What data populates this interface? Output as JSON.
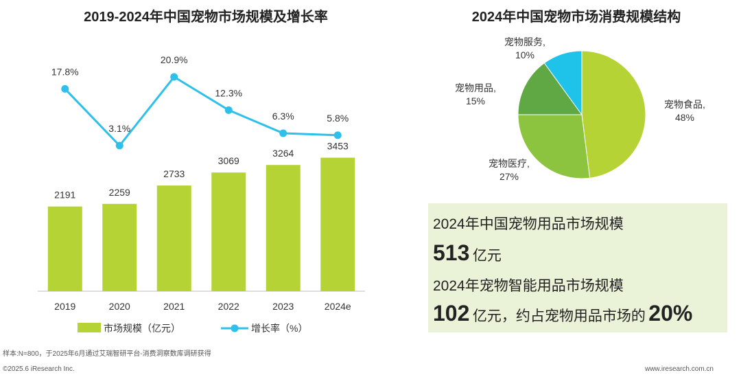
{
  "left_chart": {
    "title": "2019-2024年中国宠物市场规模及增长率",
    "chart_data": {
      "type": "bar+line",
      "categories": [
        "2019",
        "2020",
        "2021",
        "2022",
        "2023",
        "2024e"
      ],
      "series": [
        {
          "name": "市场规模（亿元）",
          "type": "bar",
          "values": [
            2191,
            2259,
            2733,
            3069,
            3264,
            3453
          ],
          "color": "#b5d334"
        },
        {
          "name": "增长率（%）",
          "type": "line",
          "values": [
            17.8,
            3.1,
            20.9,
            12.3,
            6.3,
            5.8
          ],
          "color": "#2cc0ea"
        }
      ],
      "bar_labels": [
        "2191",
        "2259",
        "2733",
        "3069",
        "3264",
        "3453"
      ],
      "line_labels": [
        "17.8%",
        "3.1%",
        "20.9%",
        "12.3%",
        "6.3%",
        "5.8%"
      ],
      "legend": [
        "市场规模（亿元）",
        "增长率（%）"
      ],
      "legend_position": "bottom"
    }
  },
  "right_chart": {
    "title": "2024年中国宠物市场消费规模结构",
    "chart_data": {
      "type": "pie",
      "slices": [
        {
          "label": "宠物食品,",
          "pct_label": "48%",
          "value": 48,
          "color": "#b5d334"
        },
        {
          "label": "宠物医疗,",
          "pct_label": "27%",
          "value": 27,
          "color": "#8cc43f"
        },
        {
          "label": "宠物用品,",
          "pct_label": "15%",
          "value": 15,
          "color": "#5fa843"
        },
        {
          "label": "宠物服务,",
          "pct_label": "10%",
          "value": 10,
          "color": "#1fc3ea"
        }
      ]
    }
  },
  "info_box": {
    "line1": "2024年中国宠物用品市场规模",
    "value1": "513",
    "unit1": "亿元",
    "line3": "2024年宠物智能用品市场规模",
    "value2": "102",
    "unit2": "亿元，约占宠物用品市场的",
    "value3": "20%"
  },
  "footer": {
    "source": "样本:N=800，于2025年6月通过艾瑞智研平台-消费洞察数库调研获得",
    "copyright": "©2025.6 iResearch Inc.",
    "website": "www.iresearch.com.cn"
  }
}
